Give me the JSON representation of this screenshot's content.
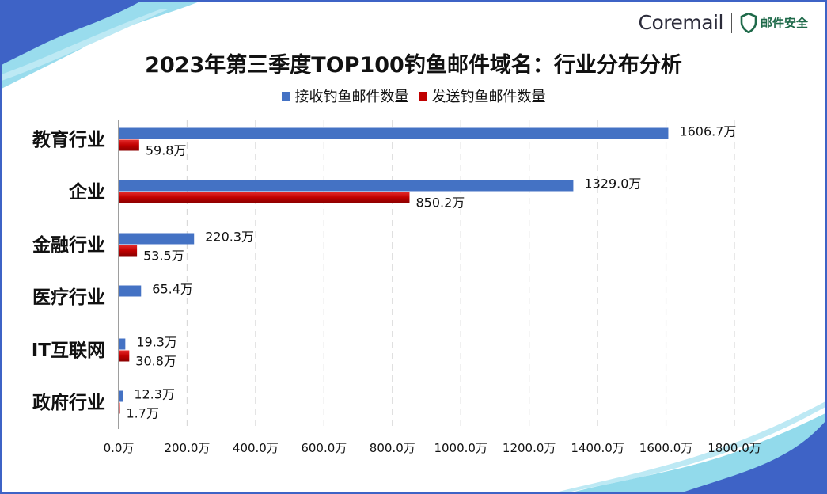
{
  "brand": {
    "name": "Coremail",
    "sub": "邮件安全",
    "shield_icon": "shield-icon",
    "accent": "#1f6a4a"
  },
  "chart_data": {
    "type": "bar",
    "orientation": "horizontal",
    "title": "2023年第三季度TOP100钓鱼邮件域名：行业分布分析",
    "categories": [
      "教育行业",
      "企业",
      "金融行业",
      "医疗行业",
      "IT互联网",
      "政府行业"
    ],
    "series": [
      {
        "name": "接收钓鱼邮件数量",
        "color": "#4472c4",
        "values": [
          1606.7,
          1329.0,
          220.3,
          65.4,
          19.3,
          12.3
        ],
        "labels": [
          "1606.7万",
          "1329.0万",
          "220.3万",
          "65.4万",
          "19.3万",
          "12.3万"
        ]
      },
      {
        "name": "发送钓鱼邮件数量",
        "color": "#c00000",
        "values": [
          59.8,
          850.2,
          53.5,
          null,
          30.8,
          1.7
        ],
        "labels": [
          "59.8万",
          "850.2万",
          "53.5万",
          "",
          "30.8万",
          "1.7万"
        ]
      }
    ],
    "xlim": [
      0,
      1800
    ],
    "xticks": [
      0,
      200,
      400,
      600,
      800,
      1000,
      1200,
      1400,
      1600,
      1800
    ],
    "xtick_labels": [
      "0.0万",
      "200.0万",
      "400.0万",
      "600.0万",
      "800.0万",
      "1000.0万",
      "1200.0万",
      "1400.0万",
      "1600.0万",
      "1800.0万"
    ],
    "grid": "vertical-dashed",
    "legend_position": "top-center"
  }
}
